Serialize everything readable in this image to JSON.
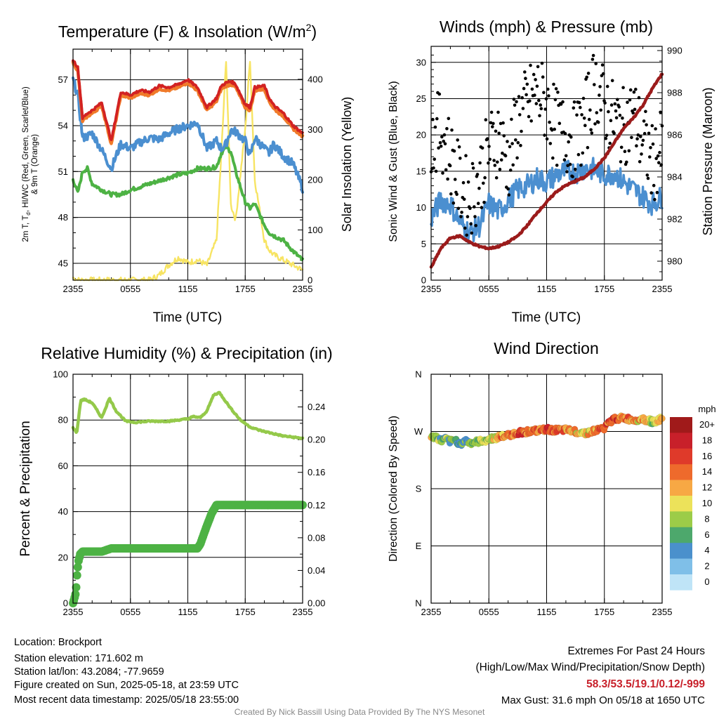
{
  "footer": {
    "location": "Location: Brockport",
    "elevation": "Station elevation: 171.602 m",
    "latlon": "Station lat/lon: 43.2084; -77.9659",
    "created": "Figure created on Sun, 2025-05-18, at 23:59 UTC",
    "recent": "Most recent data timestamp: 2025/05/18 23:55:00",
    "extremes_title": "Extremes For Past 24 Hours",
    "extremes_sub": "(High/Low/Max Wind/Precipitation/Snow Depth)",
    "extremes_values": "58.3/53.5/19.1/0.12/-999",
    "max_gust": "Max Gust: 31.6 mph On 05/18 at 1650 UTC",
    "credit": "Created By Nick Bassill Using Data Provided By The NYS Mesonet"
  },
  "colors": {
    "red": "#d22222",
    "orange": "#f07a2a",
    "blue": "#4b8fd0",
    "green": "#4db244",
    "yellow": "#f7e463",
    "black": "#000000",
    "maroon": "#9b1b1b",
    "rh": "#94c94a",
    "precip": "#4db244",
    "extremes": "#c8202a",
    "credit": "#888888"
  },
  "chart_data": [
    {
      "type": "line",
      "title": "Temperature (F) & Insolation (W/m²)",
      "xlabel": "Time (UTC)",
      "ylabel_left": "2m T, T_d, HI/WC (Red, Green, Scarlet/Blue) & 9m T (Orange)",
      "ylabel_right": "Solar Insolation (Yellow)",
      "x_ticks": [
        "2355",
        "0555",
        "1155",
        "1755",
        "2355"
      ],
      "ylim_left": [
        43.9,
        59
      ],
      "yticks_left": [
        45,
        48,
        51,
        54,
        57
      ],
      "ylim_right": [
        0,
        460
      ],
      "yticks_right": [
        0,
        100,
        200,
        300,
        400
      ],
      "grid": true,
      "x_hours": [
        0,
        0.5,
        1,
        1.5,
        2,
        3,
        4,
        5,
        6,
        7,
        8,
        9,
        10,
        11,
        12,
        13,
        14,
        15,
        15.5,
        16,
        16.5,
        17,
        18,
        18.5,
        19,
        20,
        20.5,
        21,
        22,
        23,
        24
      ],
      "series": [
        {
          "name": "2m T",
          "axis": "left",
          "color": "red",
          "values": [
            58.3,
            57.8,
            54.5,
            54.8,
            55.0,
            55.5,
            53.0,
            56.2,
            56.0,
            56.3,
            56.2,
            56.6,
            56.5,
            56.7,
            57.0,
            56.5,
            55.2,
            55.8,
            56.6,
            56.8,
            56.9,
            56.7,
            55.4,
            55.2,
            56.5,
            56.6,
            55.8,
            55.3,
            54.8,
            54.0,
            53.5
          ]
        },
        {
          "name": "9m T",
          "axis": "left",
          "color": "orange",
          "values": [
            58.1,
            57.6,
            54.3,
            54.6,
            54.8,
            55.3,
            52.8,
            56.0,
            55.8,
            56.1,
            56.0,
            56.4,
            56.3,
            56.5,
            56.8,
            56.3,
            55.0,
            55.6,
            56.4,
            56.6,
            56.7,
            56.5,
            55.2,
            55.0,
            56.3,
            56.4,
            55.6,
            55.1,
            54.6,
            53.8,
            53.3
          ]
        },
        {
          "name": "T_d",
          "axis": "left",
          "color": "green",
          "values": [
            50.5,
            49.6,
            51.0,
            51.2,
            50.2,
            49.8,
            49.5,
            49.5,
            49.8,
            50.0,
            50.2,
            50.4,
            50.6,
            50.8,
            50.9,
            51.2,
            51.2,
            51.3,
            52.2,
            52.6,
            52.3,
            51.0,
            49.0,
            48.6,
            48.9,
            47.5,
            47.0,
            46.8,
            46.5,
            45.8,
            45.2
          ]
        },
        {
          "name": "HI/WC",
          "axis": "left",
          "color": "blue",
          "values": [
            57.0,
            56.0,
            53.2,
            53.3,
            53.5,
            52.4,
            51.2,
            52.8,
            52.5,
            52.9,
            53.2,
            53.1,
            53.5,
            53.8,
            54.0,
            54.2,
            52.5,
            53.0,
            52.5,
            52.8,
            53.7,
            53.6,
            53.0,
            52.0,
            53.2,
            52.5,
            52.2,
            52.8,
            52.0,
            51.5,
            49.9
          ]
        },
        {
          "name": "Solar Insolation",
          "axis": "right",
          "color": "yellow",
          "values": [
            5,
            0,
            0,
            0,
            0,
            0,
            0,
            0,
            0,
            0,
            0,
            10,
            30,
            45,
            35,
            40,
            30,
            80,
            250,
            440,
            150,
            120,
            300,
            440,
            200,
            80,
            60,
            50,
            40,
            30,
            20
          ]
        }
      ]
    },
    {
      "type": "scatter",
      "title": "Winds (mph) & Pressure (mb)",
      "xlabel": "Time (UTC)",
      "ylabel_left": "Sonic Wind & Gust (Blue, Black)",
      "ylabel_right": "Station Pressure (Maroon)",
      "x_ticks": [
        "2355",
        "0555",
        "1155",
        "1755",
        "2355"
      ],
      "ylim_left": [
        0,
        32.2
      ],
      "yticks_left": [
        0,
        5,
        10,
        15,
        20,
        25,
        30
      ],
      "ylim_right": [
        979.1,
        990.2
      ],
      "yticks_right": [
        980,
        982,
        984,
        986,
        988,
        990
      ],
      "grid": true,
      "x_hours": [
        0,
        1,
        2,
        3,
        4,
        5,
        6,
        7,
        8,
        9,
        10,
        11,
        12,
        13,
        14,
        15,
        16,
        17,
        18,
        19,
        20,
        21,
        22,
        23,
        24
      ],
      "series": [
        {
          "name": "Sonic Wind",
          "axis": "left",
          "color": "blue",
          "values": [
            8.5,
            11.0,
            10.5,
            8.0,
            6.5,
            7.5,
            10.5,
            9.5,
            11.0,
            12.5,
            13.0,
            14.0,
            13.5,
            14.5,
            15.0,
            14.8,
            15.5,
            15.2,
            14.5,
            14.8,
            13.5,
            12.5,
            11.5,
            10.5,
            11.5
          ]
        },
        {
          "name": "Gust",
          "axis": "left",
          "color": "black",
          "values": [
            19,
            21,
            17,
            13,
            11,
            14,
            18,
            20,
            16,
            22,
            24,
            26,
            24,
            21,
            20,
            19,
            22,
            27,
            24,
            22,
            21,
            23,
            19,
            16,
            18
          ]
        },
        {
          "name": "Station Pressure",
          "axis": "right",
          "color": "maroon",
          "values": [
            979.7,
            980.6,
            981.1,
            981.2,
            980.9,
            980.7,
            980.6,
            980.7,
            980.9,
            981.2,
            981.7,
            982.3,
            982.8,
            983.3,
            983.6,
            983.8,
            984.0,
            984.4,
            984.9,
            985.6,
            986.3,
            986.8,
            987.4,
            988.2,
            988.9
          ]
        }
      ]
    },
    {
      "type": "line",
      "title": "Relative Humidity (%) & Precipitation (in)",
      "xlabel": "",
      "ylabel_left": "Percent & Precipitation",
      "x_ticks": [
        "2355",
        "0555",
        "1155",
        "1755",
        "2355"
      ],
      "ylim_left": [
        0,
        100
      ],
      "yticks_left": [
        0,
        20,
        40,
        60,
        80,
        100
      ],
      "ylim_right": [
        0,
        0.28
      ],
      "yticks_right": [
        "0.00",
        "0.04",
        "0.08",
        "0.12",
        "0.16",
        "0.20",
        "0.24"
      ],
      "grid": true,
      "series": [
        {
          "name": "Relative Humidity",
          "axis": "left",
          "color": "rh",
          "x_hours": [
            0,
            0.4,
            0.8,
            1.2,
            2,
            3,
            3.8,
            4.5,
            5.5,
            6.5,
            8,
            9,
            10,
            11,
            12,
            12.6,
            13.3,
            14,
            14.7,
            15.3,
            16.5,
            17.5,
            18.5,
            19.5,
            21,
            22,
            23,
            24
          ],
          "values": [
            76.5,
            74.5,
            88.5,
            89,
            87.5,
            81,
            89.5,
            84,
            79.5,
            79,
            79.5,
            79.5,
            79.5,
            80,
            80.5,
            81.5,
            81,
            84,
            91,
            92,
            85,
            80,
            77,
            75.5,
            74,
            73,
            72.5,
            72
          ]
        },
        {
          "name": "Precipitation",
          "axis": "right",
          "color": "precip",
          "x_hours": [
            0,
            0.1,
            0.3,
            0.4,
            0.55,
            0.75,
            1,
            1.5,
            2,
            3,
            4,
            5,
            6,
            7,
            8,
            9,
            10,
            11,
            12,
            13,
            13.3,
            13.6,
            14,
            14.5,
            15,
            16,
            17,
            18,
            19,
            20,
            21,
            22,
            23,
            24
          ],
          "values": [
            0,
            0.004,
            0.013,
            0.032,
            0.05,
            0.06,
            0.063,
            0.063,
            0.063,
            0.063,
            0.067,
            0.067,
            0.067,
            0.067,
            0.067,
            0.067,
            0.067,
            0.067,
            0.067,
            0.067,
            0.072,
            0.082,
            0.095,
            0.11,
            0.12,
            0.12,
            0.12,
            0.12,
            0.12,
            0.12,
            0.12,
            0.12,
            0.12,
            0.12
          ]
        }
      ]
    },
    {
      "type": "scatter",
      "title": "Wind Direction",
      "xlabel": "",
      "ylabel_left": "Direction (Colored By Speed)",
      "x_ticks": [
        "2355",
        "0555",
        "1155",
        "1755",
        "2355"
      ],
      "y_ticks": [
        "N",
        "E",
        "S",
        "W",
        "N"
      ],
      "ylim_degrees": [
        0,
        360
      ],
      "grid": true,
      "colorbar": {
        "unit": "mph",
        "labels": [
          "20+",
          "18",
          "16",
          "14",
          "12",
          "10",
          "8",
          "6",
          "4",
          "2",
          "0"
        ],
        "colors": [
          "#a01a1a",
          "#c8202a",
          "#df3a2a",
          "#ee6a2c",
          "#f7a844",
          "#ece25a",
          "#9ccc48",
          "#4da86c",
          "#4a90cc",
          "#7fbfe8",
          "#bfe4f7"
        ]
      },
      "x_hours": [
        0,
        0.5,
        1,
        1.5,
        2,
        2.5,
        3,
        3.5,
        4,
        5,
        6,
        7,
        8,
        9,
        10,
        11,
        12,
        13,
        14,
        15,
        16,
        17,
        18,
        19,
        20,
        21,
        22,
        23,
        24
      ],
      "direction_deg": [
        260,
        262,
        255,
        258,
        254,
        257,
        250,
        256,
        252,
        254,
        258,
        261,
        264,
        268,
        270,
        271,
        273,
        272,
        272,
        270,
        268,
        271,
        276,
        290,
        291,
        288,
        290,
        285,
        290
      ],
      "speed_mph": [
        10,
        9,
        7,
        8,
        6,
        7,
        5,
        8,
        7,
        9,
        10,
        13,
        15,
        16,
        15,
        16,
        17,
        16,
        14,
        12,
        11,
        14,
        16,
        17,
        15,
        13,
        12,
        10,
        12
      ]
    }
  ]
}
